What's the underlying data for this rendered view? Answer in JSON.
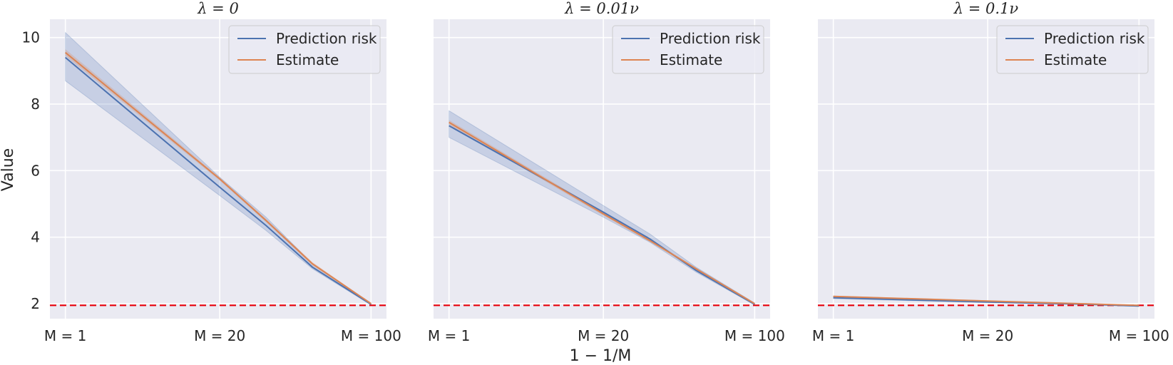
{
  "figure": {
    "ylabel": "Value",
    "xlabel": "1 − 1/M",
    "colors": {
      "panel_bg": "#EAEAF2",
      "grid": "#FFFFFF",
      "prediction_risk": "#4C72B0",
      "estimate": "#DD8452",
      "band": "#4C72B0",
      "reference": "#E8000B"
    }
  },
  "chart_data": [
    {
      "type": "line",
      "title": "λ = 0",
      "x": [
        0,
        0.5,
        0.65,
        0.8,
        0.99
      ],
      "xticks": [
        0,
        0.5,
        0.99
      ],
      "xtick_labels": [
        "M = 1",
        "M = 20",
        "M = 100"
      ],
      "xlim": [
        -0.05,
        1.04
      ],
      "ylim": [
        1.55,
        10.55
      ],
      "yticks": [
        2,
        4,
        6,
        8,
        10
      ],
      "grid": true,
      "legend": {
        "position": "top-right",
        "entries": [
          "Prediction risk",
          "Estimate"
        ]
      },
      "series": [
        {
          "name": "Prediction risk",
          "values": [
            9.4,
            5.5,
            4.35,
            3.1,
            1.98
          ],
          "band_lower": [
            8.7,
            5.25,
            4.2,
            3.05,
            1.96
          ],
          "band_upper": [
            10.15,
            5.8,
            4.6,
            3.2,
            2.02
          ]
        },
        {
          "name": "Estimate",
          "values": [
            9.55,
            5.75,
            4.5,
            3.2,
            2.0
          ],
          "band_lower": [
            9.45,
            5.7,
            4.45,
            3.15,
            1.98
          ],
          "band_upper": [
            9.65,
            5.8,
            4.55,
            3.25,
            2.02
          ]
        }
      ],
      "reference_line": {
        "y": 1.95,
        "style": "dashed"
      }
    },
    {
      "type": "line",
      "title": "λ = 0.01ν",
      "x": [
        0,
        0.5,
        0.65,
        0.8,
        0.99
      ],
      "xticks": [
        0,
        0.5,
        0.99
      ],
      "xtick_labels": [
        "M = 1",
        "M = 20",
        "M = 100"
      ],
      "xlim": [
        -0.05,
        1.04
      ],
      "ylim": [
        1.55,
        10.55
      ],
      "yticks": [
        2,
        4,
        6,
        8,
        10
      ],
      "grid": true,
      "legend": {
        "position": "top-right",
        "entries": [
          "Prediction risk",
          "Estimate"
        ]
      },
      "series": [
        {
          "name": "Prediction risk",
          "values": [
            7.35,
            4.75,
            3.95,
            3.0,
            1.98
          ],
          "band_lower": [
            7.0,
            4.6,
            3.85,
            2.95,
            1.96
          ],
          "band_upper": [
            7.8,
            4.95,
            4.1,
            3.1,
            2.02
          ]
        },
        {
          "name": "Estimate",
          "values": [
            7.45,
            4.7,
            3.9,
            3.05,
            2.0
          ],
          "band_lower": [
            7.38,
            4.65,
            3.86,
            3.02,
            1.98
          ],
          "band_upper": [
            7.52,
            4.75,
            3.94,
            3.08,
            2.02
          ]
        }
      ],
      "reference_line": {
        "y": 1.95,
        "style": "dashed"
      }
    },
    {
      "type": "line",
      "title": "λ = 0.1ν",
      "x": [
        0,
        0.5,
        0.65,
        0.8,
        0.99
      ],
      "xticks": [
        0,
        0.5,
        0.99
      ],
      "xtick_labels": [
        "M = 1",
        "M = 20",
        "M = 100"
      ],
      "xlim": [
        -0.05,
        1.04
      ],
      "ylim": [
        1.55,
        10.55
      ],
      "yticks": [
        2,
        4,
        6,
        8,
        10
      ],
      "grid": true,
      "legend": {
        "position": "top-right",
        "entries": [
          "Prediction risk",
          "Estimate"
        ]
      },
      "series": [
        {
          "name": "Prediction risk",
          "values": [
            2.18,
            2.05,
            2.02,
            1.99,
            1.93
          ],
          "band_lower": [
            2.15,
            2.03,
            2.0,
            1.97,
            1.92
          ],
          "band_upper": [
            2.22,
            2.08,
            2.04,
            2.01,
            1.95
          ]
        },
        {
          "name": "Estimate",
          "values": [
            2.22,
            2.08,
            2.04,
            2.0,
            1.95
          ],
          "band_lower": [
            2.2,
            2.06,
            2.02,
            1.98,
            1.94
          ],
          "band_upper": [
            2.24,
            2.1,
            2.06,
            2.02,
            1.96
          ]
        }
      ],
      "reference_line": {
        "y": 1.95,
        "style": "dashed"
      }
    }
  ]
}
